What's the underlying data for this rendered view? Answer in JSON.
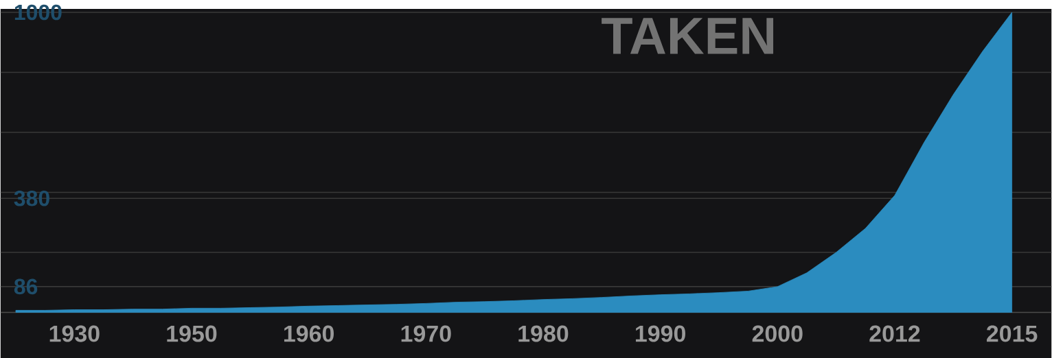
{
  "chart_data": {
    "type": "area",
    "title": "TAKEN",
    "categories": [
      null,
      null,
      "1930",
      null,
      null,
      null,
      "1950",
      null,
      null,
      null,
      "1960",
      null,
      null,
      null,
      "1970",
      null,
      null,
      null,
      "1980",
      null,
      null,
      null,
      "1990",
      null,
      null,
      null,
      "2000",
      null,
      null,
      null,
      "2012",
      null,
      null,
      null,
      "2015"
    ],
    "values": [
      7,
      7,
      9,
      9,
      11,
      11,
      14,
      14,
      16,
      18,
      21,
      23,
      25,
      27,
      30,
      34,
      36,
      39,
      43,
      46,
      50,
      55,
      59,
      62,
      66,
      71,
      86,
      132,
      200,
      280,
      390,
      566,
      726,
      870,
      1000
    ],
    "color": "#2b8cbf",
    "ylim": [
      0,
      1000
    ],
    "yticks": [
      86,
      {
        "value": 200,
        "label": null
      },
      380,
      {
        "value": 400,
        "label": null
      },
      {
        "value": 600,
        "label": null
      },
      {
        "value": 800,
        "label": null
      },
      1000
    ],
    "grid": "y"
  }
}
